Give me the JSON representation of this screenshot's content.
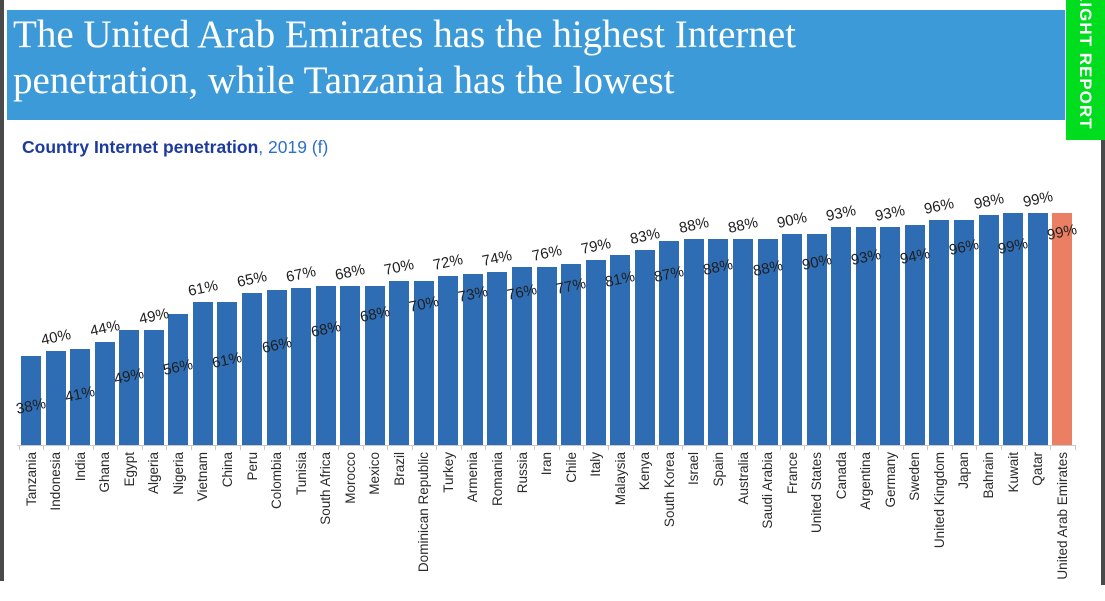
{
  "banner": {
    "title_line1": "The United Arab Emirates has the highest Internet",
    "title_line2": "penetration, while Tanzania has the lowest",
    "bg_color": "#3d9ad8",
    "text_color": "#ffffff"
  },
  "side_tab": {
    "label": "LIGHT REPORT",
    "bg_color": "#00dc1e",
    "text_color": "#ffffff"
  },
  "subtitle": {
    "bold": "Country Internet penetration",
    "rest": ", 2019 (f)",
    "bold_color": "#1c3aa0",
    "rest_color": "#2d6fc9"
  },
  "chart_data": {
    "type": "bar",
    "title": "Country Internet penetration, 2019 (f)",
    "xlabel": "",
    "ylabel": "",
    "ylim": [
      0,
      100
    ],
    "grid": false,
    "value_suffix": "%",
    "bar_color": "#2e6db4",
    "highlight_color": "#ea7f63",
    "highlight_category": "United Arab Emirates",
    "categories": [
      "Tanzania",
      "Indonesia",
      "India",
      "Ghana",
      "Egypt",
      "Algeria",
      "Nigeria",
      "Vietnam",
      "China",
      "Peru",
      "Colombia",
      "Tunisia",
      "South Africa",
      "Morocco",
      "Mexico",
      "Brazil",
      "Dominican Republic",
      "Turkey",
      "Armenia",
      "Romania",
      "Russia",
      "Iran",
      "Chile",
      "Italy",
      "Malaysia",
      "Kenya",
      "South Korea",
      "Israel",
      "Spain",
      "Australia",
      "Saudi Arabia",
      "France",
      "United States",
      "Canada",
      "Argentina",
      "Germany",
      "Sweden",
      "United Kingdom",
      "Japan",
      "Bahrain",
      "Kuwait",
      "Qatar",
      "United Arab Emirates"
    ],
    "values": [
      38,
      40,
      41,
      44,
      49,
      49,
      56,
      61,
      61,
      65,
      66,
      67,
      68,
      68,
      68,
      70,
      70,
      72,
      73,
      74,
      76,
      76,
      77,
      79,
      81,
      83,
      87,
      88,
      88,
      88,
      88,
      90,
      90,
      93,
      93,
      93,
      94,
      96,
      96,
      98,
      99,
      99,
      99
    ],
    "value_labels": [
      "38%",
      "40%",
      "41%",
      "44%",
      "49%",
      "49%",
      "56%",
      "61%",
      "61%",
      "65%",
      "66%",
      "67%",
      "68%",
      "68%",
      "68%",
      "70%",
      "70%",
      "72%",
      "73%",
      "74%",
      "76%",
      "76%",
      "77%",
      "79%",
      "81%",
      "83%",
      "87%",
      "88%",
      "88%",
      "88%",
      "88%",
      "90%",
      "90%",
      "93%",
      "93%",
      "93%",
      "94%",
      "96%",
      "96%",
      "98%",
      "99%",
      "99%",
      "99%"
    ],
    "label_positions": [
      "inside",
      "above",
      "inside",
      "above",
      "inside",
      "above",
      "inside",
      "above",
      "inside",
      "above",
      "inside",
      "above",
      "inside",
      "above",
      "inside",
      "above",
      "inside",
      "above",
      "inside",
      "above",
      "inside",
      "above",
      "inside",
      "above",
      "inside",
      "above",
      "inside",
      "above",
      "inside",
      "above",
      "inside",
      "above",
      "inside",
      "above",
      "inside",
      "above",
      "inside",
      "above",
      "inside",
      "above",
      "inside",
      "above",
      "inside"
    ]
  }
}
